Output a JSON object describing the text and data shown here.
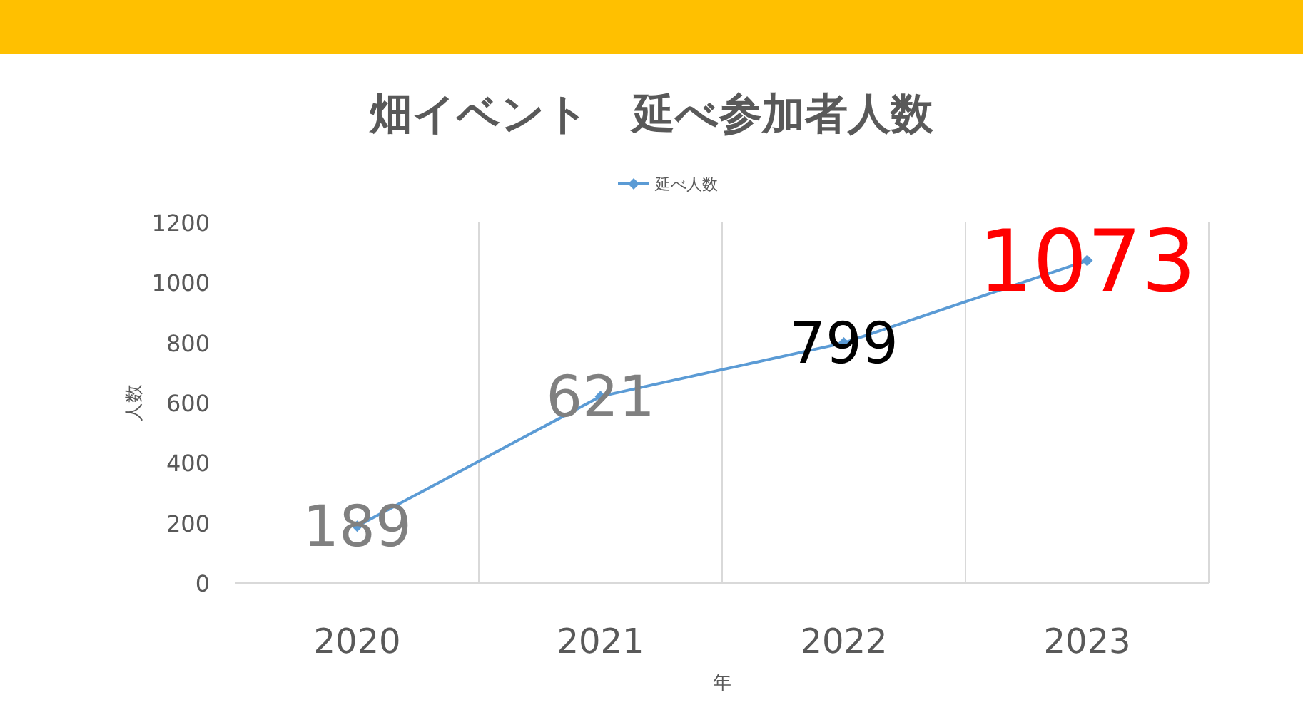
{
  "chart_data": {
    "type": "line",
    "title": "畑イベント　延べ参加者人数",
    "xlabel": "年",
    "ylabel": "人数",
    "categories": [
      "2020",
      "2021",
      "2022",
      "2023"
    ],
    "series": [
      {
        "name": "延べ人数",
        "color": "#5b9bd5",
        "values": [
          189,
          621,
          799,
          1073
        ]
      }
    ],
    "ylim": [
      0,
      1200
    ],
    "yticks": [
      0,
      200,
      400,
      600,
      800,
      1000,
      1200
    ],
    "grid": "x",
    "legend": "top",
    "marker": "diamond",
    "line_style": "solid",
    "data_labels": true
  }
}
